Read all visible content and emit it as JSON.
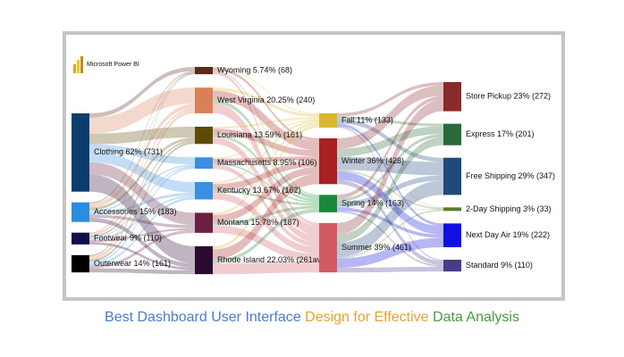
{
  "app": "Microsoft Power BI",
  "chart_data": {
    "type": "sankey",
    "columns": [
      {
        "nodes": [
          {
            "label": "Clothing 62% (731)",
            "value": 731,
            "color": "#0b3d6e",
            "flows": [
              40,
              150,
              100,
              66,
              100,
              115,
              160
            ]
          },
          {
            "label": "Accessories 15% (183)",
            "value": 183,
            "color": "#2a8de0",
            "flows": [
              10,
              40,
              25,
              15,
              25,
              28,
              40
            ]
          },
          {
            "label": "Footwear 9% (110)",
            "value": 110,
            "color": "#10104a",
            "flows": [
              8,
              20,
              16,
              10,
              15,
              18,
              23
            ]
          },
          {
            "label": "Outerwear 14% (161)",
            "value": 161,
            "color": "#000000",
            "flows": [
              10,
              30,
              20,
              15,
              22,
              26,
              38
            ]
          }
        ]
      },
      {
        "nodes": [
          {
            "label": "Wyoming 5.74% (68)",
            "value": 68,
            "color": "#5a2a1a",
            "flows": [
              8,
              24,
              10,
              26
            ]
          },
          {
            "label": "West Virginia 20.25% (240)",
            "value": 240,
            "color": "#d8805a",
            "flows": [
              27,
              87,
              33,
              93
            ]
          },
          {
            "label": "Louisiana 13.59% (161)",
            "value": 161,
            "color": "#5e4a08",
            "flows": [
              18,
              58,
              22,
              63
            ]
          },
          {
            "label": "Massachusetts 8.95% (106)",
            "value": 106,
            "color": "#3c8ee0",
            "flows": [
              12,
              38,
              15,
              41
            ]
          },
          {
            "label": "Kentucky 13.67% (162)",
            "value": 162,
            "color": "#3a8fe0",
            "flows": [
              18,
              58,
              22,
              64
            ]
          },
          {
            "label": "Montana 15.78% (187)",
            "value": 187,
            "color": "#6a2040",
            "flows": [
              21,
              68,
              26,
              72
            ]
          },
          {
            "label": "Rhode Island 22.03% (261av)",
            "value": 261,
            "color": "#2a0a30",
            "flows": [
              29,
              95,
              35,
              102
            ]
          }
        ]
      },
      {
        "nodes": [
          {
            "label": "Fall 11% (133)",
            "value": 133,
            "color": "#d9b830",
            "flows": [
              30,
              23,
              39,
              4,
              25,
              12
            ]
          },
          {
            "label": "Winter 36% (428)",
            "value": 428,
            "color": "#a82020",
            "flows": [
              98,
              73,
              125,
              12,
              80,
              40
            ]
          },
          {
            "label": "Spring 14% (163)",
            "value": 163,
            "color": "#1a8a3a",
            "flows": [
              37,
              28,
              48,
              5,
              30,
              15
            ]
          },
          {
            "label": "Summer 39% (461)",
            "value": 461,
            "color": "#d05a64",
            "flows": [
              107,
              77,
              135,
              12,
              87,
              43
            ]
          }
        ]
      },
      {
        "nodes": [
          {
            "label": "Store Pickup 23% (272)",
            "value": 272,
            "color": "#8a2a2a"
          },
          {
            "label": "Express 17% (201)",
            "value": 201,
            "color": "#2a6a3a"
          },
          {
            "label": "Free Shipping 29% (347)",
            "value": 347,
            "color": "#204a7a"
          },
          {
            "label": "2-Day Shipping 3% (33)",
            "value": 33,
            "color": "#5a7a2a"
          },
          {
            "label": "Next Day Air 19% (222)",
            "value": 222,
            "color": "#1010e0"
          },
          {
            "label": "Standard 9% (110)",
            "value": 110,
            "color": "#4a3a8a"
          }
        ]
      }
    ]
  },
  "caption": [
    "Best Dashboard User Interface ",
    "Design for Effective ",
    "Data Analysis"
  ]
}
